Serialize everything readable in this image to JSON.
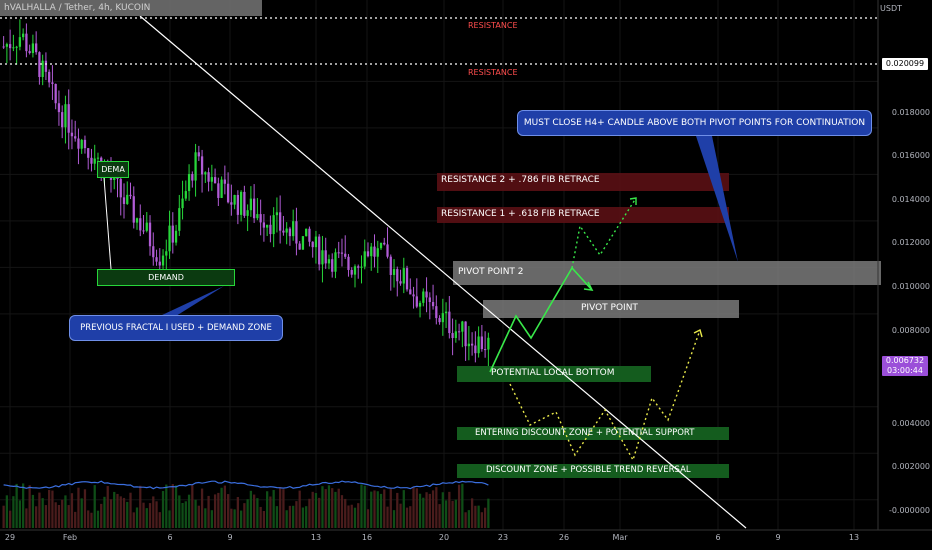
{
  "header": {
    "symbol_line": "hVALHALLA / Tether, 4h, KUCOIN"
  },
  "axis": {
    "currency": "USDT",
    "y_ticks": [
      "0.018000",
      "0.016000",
      "0.014000",
      "0.012000",
      "0.010000",
      "0.008000",
      "0.004000",
      "0.002000",
      "-0.000000"
    ],
    "x_ticks": [
      "29",
      "Feb",
      "6",
      "9",
      "13",
      "16",
      "20",
      "23",
      "26",
      "Mar",
      "6",
      "9",
      "13"
    ],
    "levels": [
      "0.020099"
    ],
    "current_price": "0.006732",
    "countdown": "03:00:44"
  },
  "annotations": {
    "resistance_a": "RESISTANCE",
    "resistance_b": "RESISTANCE",
    "callout_top": "MUST CLOSE H4+ CANDLE ABOVE BOTH PIVOT POINTS FOR CONTINUATION",
    "res2": "RESISTANCE 2 + .786 FIB RETRACE",
    "res1": "RESISTANCE 1 + .618 FIB RETRACE",
    "pivot2": "PIVOT POINT 2",
    "pivot1": "PIVOT POINT",
    "local_bottom": "POTENTIAL LOCAL BOTTOM",
    "entering_zone": "ENTERING  DISCOUNT ZONE + POTENTIAL SUPPORT",
    "discount_zone": "DISCOUNT ZONE + POSSIBLE TREND REVERSAL",
    "dema": "DEMA",
    "demand": "DEMAND",
    "fractal": "PREVIOUS FRACTAL I USED + DEMAND ZONE"
  },
  "colors": {
    "up": "#27d63a",
    "down": "#b15cd6",
    "resistance_text": "#ff4d4d",
    "callout": "#1f3fa8",
    "support": "#145c1e",
    "res_zone": "#5a0f14"
  },
  "chart_data": {
    "type": "candlestick",
    "x_axis_labels": [
      "29",
      "Feb",
      "6",
      "9",
      "13",
      "16",
      "20",
      "23",
      "26",
      "Mar",
      "6",
      "9",
      "13"
    ],
    "y_axis_ticks": [
      0.018,
      0.016,
      0.014,
      0.012,
      0.01,
      0.008,
      0.004,
      0.002,
      0.0
    ],
    "ylim": [
      -0.0013,
      0.0215
    ],
    "resistance_lines": [
      0.0212,
      0.020099
    ],
    "current_price": 0.006732,
    "zones": [
      {
        "label": "RESISTANCE 2 + .786 FIB RETRACE",
        "low": 0.0147,
        "high": 0.0153
      },
      {
        "label": "RESISTANCE 1 + .618 FIB RETRACE",
        "low": 0.0131,
        "high": 0.0136
      },
      {
        "label": "PIVOT POINT 2",
        "low": 0.0102,
        "high": 0.0113
      },
      {
        "label": "PIVOT POINT",
        "low": 0.0088,
        "high": 0.0094
      },
      {
        "label": "POTENTIAL LOCAL BOTTOM",
        "low": 0.0055,
        "high": 0.0062
      },
      {
        "label": "ENTERING  DISCOUNT ZONE + POTENTIAL SUPPORT",
        "low": 0.0035,
        "high": 0.004
      },
      {
        "label": "DISCOUNT ZONE + POSSIBLE TREND REVERSAL",
        "low": 0.0016,
        "high": 0.0021
      },
      {
        "label": "DEMAND",
        "low": 0.0096,
        "high": 0.0103
      }
    ],
    "price_path_approx": [
      0.0195,
      0.02,
      0.0188,
      0.017,
      0.016,
      0.015,
      0.014,
      0.0128,
      0.0118,
      0.0105,
      0.0118,
      0.0145,
      0.0138,
      0.013,
      0.0126,
      0.0122,
      0.0117,
      0.0113,
      0.0108,
      0.0104,
      0.01,
      0.0108,
      0.0104,
      0.0096,
      0.0086,
      0.008,
      0.0074,
      0.0069,
      0.0067
    ]
  }
}
